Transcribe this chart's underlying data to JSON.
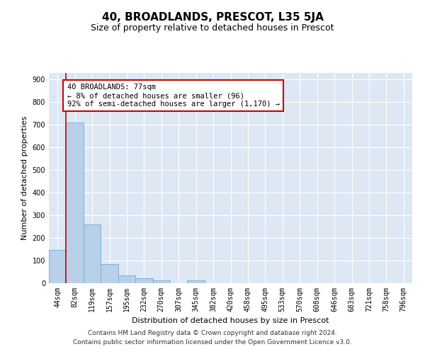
{
  "title": "40, BROADLANDS, PRESCOT, L35 5JA",
  "subtitle": "Size of property relative to detached houses in Prescot",
  "xlabel": "Distribution of detached houses by size in Prescot",
  "ylabel": "Number of detached properties",
  "categories": [
    "44sqm",
    "82sqm",
    "119sqm",
    "157sqm",
    "195sqm",
    "232sqm",
    "270sqm",
    "307sqm",
    "345sqm",
    "382sqm",
    "420sqm",
    "458sqm",
    "495sqm",
    "533sqm",
    "570sqm",
    "608sqm",
    "646sqm",
    "683sqm",
    "721sqm",
    "758sqm",
    "796sqm"
  ],
  "bar_heights": [
    148,
    710,
    260,
    85,
    35,
    22,
    14,
    0,
    14,
    0,
    0,
    0,
    0,
    0,
    0,
    0,
    0,
    0,
    0,
    0,
    0
  ],
  "bar_color": "#b8d0e8",
  "bar_edge_color": "#6baed6",
  "background_color": "#dde8f4",
  "grid_color": "#ffffff",
  "annotation_text": "40 BROADLANDS: 77sqm\n← 8% of detached houses are smaller (96)\n92% of semi-detached houses are larger (1,170) →",
  "annotation_box_color": "#ffffff",
  "annotation_box_edge_color": "#cc0000",
  "marker_line_color": "#cc0000",
  "ylim": [
    0,
    930
  ],
  "yticks": [
    0,
    100,
    200,
    300,
    400,
    500,
    600,
    700,
    800,
    900
  ],
  "footer_text": "Contains HM Land Registry data © Crown copyright and database right 2024.\nContains public sector information licensed under the Open Government Licence v3.0.",
  "title_fontsize": 11,
  "subtitle_fontsize": 9,
  "axis_label_fontsize": 8,
  "tick_fontsize": 7,
  "annotation_fontsize": 7.5,
  "footer_fontsize": 6.5
}
